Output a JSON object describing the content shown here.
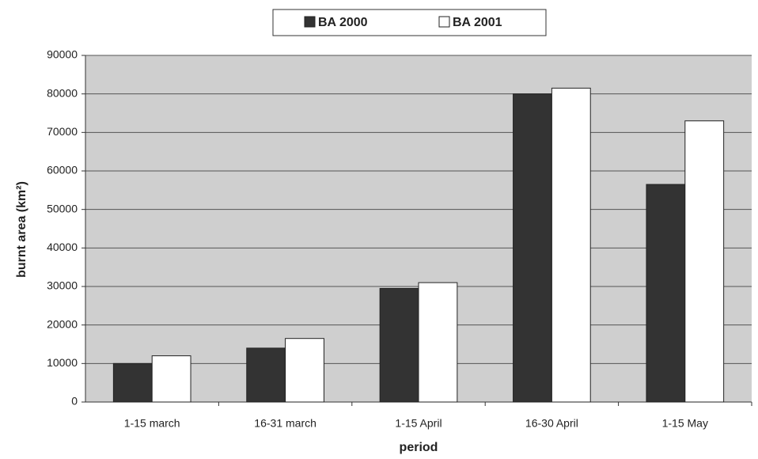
{
  "chart_data": {
    "type": "bar",
    "categories": [
      "1-15 march",
      "16-31 march",
      "1-15 April",
      "16-30 April",
      "1-15 May"
    ],
    "series": [
      {
        "name": "BA 2000",
        "color": "#333333",
        "values": [
          10000,
          14000,
          29500,
          80000,
          56500
        ]
      },
      {
        "name": "BA 2001",
        "color": "#ffffff",
        "values": [
          12000,
          16500,
          31000,
          81500,
          73000
        ]
      }
    ],
    "ylabel": "burnt area (km²)",
    "xlabel": "period",
    "ylim": [
      0,
      90000
    ],
    "yticks": [
      0,
      10000,
      20000,
      30000,
      40000,
      50000,
      60000,
      70000,
      80000,
      90000
    ],
    "grid": true,
    "legend": "top"
  }
}
